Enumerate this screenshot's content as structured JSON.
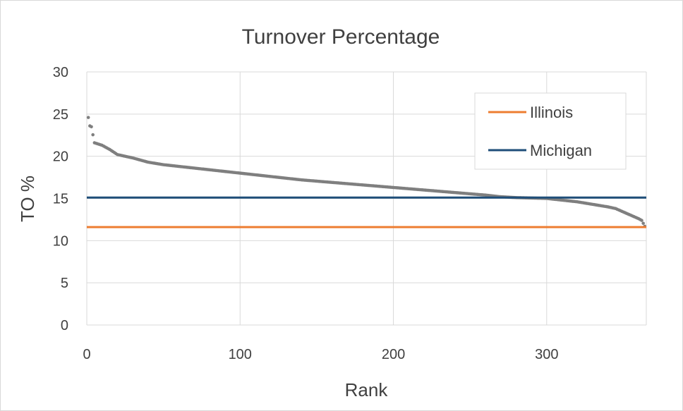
{
  "chart_data": {
    "type": "scatter",
    "title": "Turnover Percentage",
    "xlabel": "Rank",
    "ylabel": "TO %",
    "xlim": [
      0,
      365
    ],
    "ylim": [
      0,
      30
    ],
    "x_ticks": [
      "0",
      "100",
      "200",
      "300"
    ],
    "y_ticks": [
      "0",
      "5",
      "10",
      "15",
      "20",
      "25",
      "30"
    ],
    "grid": true,
    "legend_position": "top-right",
    "series": [
      {
        "kind": "scatter",
        "color": "#7f7f7f",
        "points": [
          [
            1,
            24.6
          ],
          [
            2,
            23.6
          ],
          [
            3,
            23.5
          ],
          [
            5,
            21.6
          ],
          [
            10,
            21.3
          ],
          [
            15,
            20.8
          ],
          [
            20,
            20.2
          ],
          [
            30,
            19.8
          ],
          [
            40,
            19.3
          ],
          [
            50,
            19.0
          ],
          [
            60,
            18.8
          ],
          [
            80,
            18.4
          ],
          [
            100,
            18.0
          ],
          [
            120,
            17.6
          ],
          [
            140,
            17.2
          ],
          [
            160,
            16.9
          ],
          [
            180,
            16.6
          ],
          [
            200,
            16.3
          ],
          [
            220,
            16.0
          ],
          [
            240,
            15.7
          ],
          [
            260,
            15.4
          ],
          [
            270,
            15.2
          ],
          [
            280,
            15.1
          ],
          [
            300,
            15.0
          ],
          [
            320,
            14.6
          ],
          [
            330,
            14.3
          ],
          [
            340,
            14.0
          ],
          [
            345,
            13.8
          ],
          [
            350,
            13.4
          ],
          [
            355,
            13.0
          ],
          [
            360,
            12.6
          ],
          [
            362,
            12.4
          ],
          [
            364,
            11.7
          ]
        ]
      },
      {
        "name": "Illinois",
        "kind": "hline",
        "value": 11.6,
        "color": "#ed7d31"
      },
      {
        "name": "Michigan",
        "kind": "hline",
        "value": 15.1,
        "color": "#1f4e79"
      }
    ]
  }
}
